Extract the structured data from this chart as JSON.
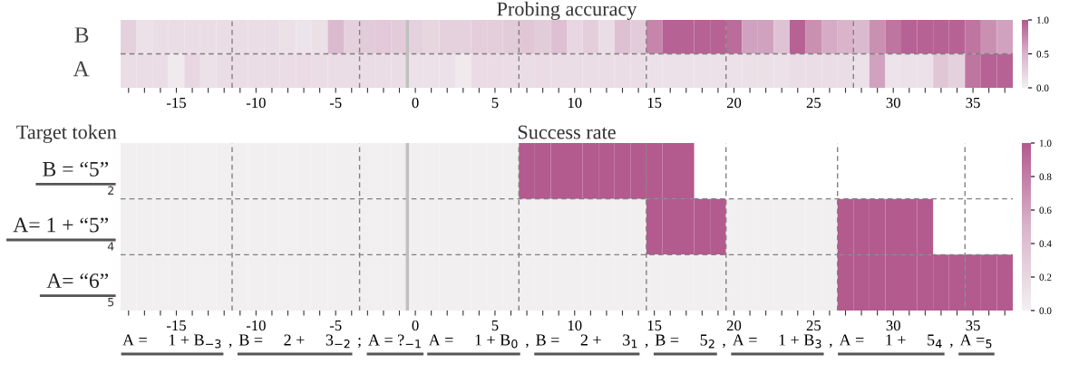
{
  "chart_data": [
    {
      "type": "heatmap",
      "title": "Probing accuracy",
      "x": [
        -18,
        -17,
        -16,
        -15,
        -14,
        -13,
        -12,
        -11,
        -10,
        -9,
        -8,
        -7,
        -6,
        -5,
        -4,
        -3,
        -2,
        -1,
        0,
        1,
        2,
        3,
        4,
        5,
        6,
        7,
        8,
        9,
        10,
        11,
        12,
        13,
        14,
        15,
        16,
        17,
        18,
        19,
        20,
        21,
        22,
        23,
        24,
        25,
        26,
        27,
        28,
        29,
        30,
        31,
        32,
        33,
        34,
        35,
        36,
        37
      ],
      "xlim": [
        -18.5,
        37.5
      ],
      "xticks": [
        {
          "value": -18,
          "label": null
        },
        {
          "value": -17,
          "label": null
        },
        {
          "value": -16,
          "label": null
        },
        -15,
        {
          "value": -14,
          "label": null
        },
        {
          "value": -13,
          "label": null
        },
        {
          "value": -12,
          "label": null
        },
        {
          "value": -11,
          "label": null
        },
        -10,
        {
          "value": -9,
          "label": null
        },
        {
          "value": -8,
          "label": null
        },
        {
          "value": -7,
          "label": null
        },
        {
          "value": -6,
          "label": null
        },
        -5,
        {
          "value": -4,
          "label": null
        },
        {
          "value": -3,
          "label": null
        },
        {
          "value": -2,
          "label": null
        },
        {
          "value": -1,
          "label": null
        },
        0,
        {
          "value": 1,
          "label": null
        },
        {
          "value": 2,
          "label": null
        },
        {
          "value": 3,
          "label": null
        },
        {
          "value": 4,
          "label": null
        },
        5,
        {
          "value": 6,
          "label": null
        },
        {
          "value": 7,
          "label": null
        },
        {
          "value": 8,
          "label": null
        },
        {
          "value": 9,
          "label": null
        },
        10,
        {
          "value": 11,
          "label": null
        },
        {
          "value": 12,
          "label": null
        },
        {
          "value": 13,
          "label": null
        },
        {
          "value": 14,
          "label": null
        },
        15,
        {
          "value": 16,
          "label": null
        },
        {
          "value": 17,
          "label": null
        },
        {
          "value": 18,
          "label": null
        },
        {
          "value": 19,
          "label": null
        },
        20,
        {
          "value": 21,
          "label": null
        },
        {
          "value": 22,
          "label": null
        },
        {
          "value": 23,
          "label": null
        },
        {
          "value": 24,
          "label": null
        },
        25,
        {
          "value": 26,
          "label": null
        },
        {
          "value": 27,
          "label": null
        },
        {
          "value": 28,
          "label": null
        },
        {
          "value": 29,
          "label": null
        },
        30,
        {
          "value": 31,
          "label": null
        },
        {
          "value": 32,
          "label": null
        },
        {
          "value": 33,
          "label": null
        },
        {
          "value": 34,
          "label": null
        },
        35,
        {
          "value": 36,
          "label": null
        },
        {
          "value": 37,
          "label": null
        }
      ],
      "y_categories": [
        "B",
        "A"
      ],
      "cells": [
        [
          0.25,
          0.12,
          0.15,
          0.15,
          0.15,
          0.15,
          0.15,
          0.15,
          0.15,
          0.15,
          0.13,
          0.1,
          0.13,
          0.45,
          0.25,
          0.3,
          0.33,
          0.3,
          0.25,
          0.22,
          0.25,
          0.25,
          0.28,
          0.28,
          0.3,
          0.35,
          0.3,
          0.4,
          0.2,
          0.28,
          0.15,
          0.4,
          0.3,
          0.75,
          0.95,
          0.95,
          0.95,
          0.95,
          0.9,
          0.6,
          0.6,
          0.38,
          0.95,
          0.7,
          0.55,
          0.5,
          0.45,
          0.7,
          0.85,
          0.95,
          0.95,
          0.95,
          0.95,
          0.85,
          0.7,
          0.6
        ],
        [
          0.15,
          0.15,
          0.15,
          0.05,
          0.2,
          0.12,
          0.15,
          0.15,
          0.15,
          0.15,
          0.15,
          0.17,
          0.15,
          0.15,
          0.15,
          0.15,
          0.15,
          0.15,
          0.12,
          0.12,
          0.12,
          0.05,
          0.17,
          0.17,
          0.15,
          0.15,
          0.17,
          0.15,
          0.15,
          0.15,
          0.15,
          0.15,
          0.15,
          0.12,
          0.12,
          0.12,
          0.12,
          0.12,
          0.12,
          0.13,
          0.13,
          0.12,
          0.15,
          0.15,
          0.15,
          0.15,
          0.12,
          0.6,
          0.1,
          0.12,
          0.12,
          0.35,
          0.25,
          0.85,
          0.95,
          0.95
        ]
      ],
      "clim": [
        0,
        1
      ],
      "cticks": [
        {
          "value": 0,
          "label": "0.0"
        },
        {
          "value": 0.5,
          "label": "0.5"
        },
        {
          "value": 1,
          "label": "1.0"
        }
      ],
      "ref_lines": [
        {
          "axis": "x",
          "value": -11.5,
          "color": "#808080",
          "line_style": "dashed"
        },
        {
          "axis": "x",
          "value": -3.5,
          "color": "#808080",
          "line_style": "dashed"
        },
        {
          "axis": "x",
          "value": 6.5,
          "color": "#808080",
          "line_style": "dashed"
        },
        {
          "axis": "x",
          "value": 14.5,
          "color": "#808080",
          "line_style": "dashed"
        },
        {
          "axis": "x",
          "value": 19.5,
          "color": "#808080",
          "line_style": "dashed"
        },
        {
          "axis": "x",
          "value": 27.5,
          "color": "#808080",
          "line_style": "dashed"
        },
        {
          "axis": "x",
          "value": -0.5,
          "color": "#c0c0c0",
          "line_style": "solid"
        }
      ]
    },
    {
      "type": "heatmap",
      "title": "Success rate",
      "ylabel": "Target token",
      "x": [
        -18,
        -17,
        -16,
        -15,
        -14,
        -13,
        -12,
        -11,
        -10,
        -9,
        -8,
        -7,
        -6,
        -5,
        -4,
        -3,
        -2,
        -1,
        0,
        1,
        2,
        3,
        4,
        5,
        6,
        7,
        8,
        9,
        10,
        11,
        12,
        13,
        14,
        15,
        16,
        17,
        18,
        19,
        20,
        21,
        22,
        23,
        24,
        25,
        26,
        27,
        28,
        29,
        30,
        31,
        32,
        33,
        34,
        35,
        36,
        37
      ],
      "xlim": [
        -18.5,
        37.5
      ],
      "xticks": [
        {
          "value": -18,
          "label": null
        },
        {
          "value": -17,
          "label": null
        },
        {
          "value": -16,
          "label": null
        },
        -15,
        {
          "value": -14,
          "label": null
        },
        {
          "value": -13,
          "label": null
        },
        {
          "value": -12,
          "label": null
        },
        {
          "value": -11,
          "label": null
        },
        -10,
        {
          "value": -9,
          "label": null
        },
        {
          "value": -8,
          "label": null
        },
        {
          "value": -7,
          "label": null
        },
        {
          "value": -6,
          "label": null
        },
        -5,
        {
          "value": -4,
          "label": null
        },
        {
          "value": -3,
          "label": null
        },
        {
          "value": -2,
          "label": null
        },
        {
          "value": -1,
          "label": null
        },
        0,
        {
          "value": 1,
          "label": null
        },
        {
          "value": 2,
          "label": null
        },
        {
          "value": 3,
          "label": null
        },
        {
          "value": 4,
          "label": null
        },
        5,
        {
          "value": 6,
          "label": null
        },
        {
          "value": 7,
          "label": null
        },
        {
          "value": 8,
          "label": null
        },
        {
          "value": 9,
          "label": null
        },
        10,
        {
          "value": 11,
          "label": null
        },
        {
          "value": 12,
          "label": null
        },
        {
          "value": 13,
          "label": null
        },
        {
          "value": 14,
          "label": null
        },
        15,
        {
          "value": 16,
          "label": null
        },
        {
          "value": 17,
          "label": null
        },
        {
          "value": 18,
          "label": null
        },
        {
          "value": 19,
          "label": null
        },
        20,
        {
          "value": 21,
          "label": null
        },
        {
          "value": 22,
          "label": null
        },
        {
          "value": 23,
          "label": null
        },
        {
          "value": 24,
          "label": null
        },
        25,
        {
          "value": 26,
          "label": null
        },
        {
          "value": 27,
          "label": null
        },
        {
          "value": 28,
          "label": null
        },
        {
          "value": 29,
          "label": null
        },
        30,
        {
          "value": 31,
          "label": null
        },
        {
          "value": 32,
          "label": null
        },
        {
          "value": 33,
          "label": null
        },
        {
          "value": 34,
          "label": null
        },
        35,
        {
          "value": 36,
          "label": null
        },
        {
          "value": 37,
          "label": null
        }
      ],
      "y_categories": [
        "B = “5”",
        "A= 1 + “5”",
        "A= “6”"
      ],
      "cells": [
        [
          0,
          0,
          0,
          0,
          0,
          0,
          0,
          0,
          0,
          0,
          0,
          0,
          0,
          0,
          0,
          0,
          0,
          0,
          0,
          0,
          0,
          0,
          0,
          0,
          0,
          1,
          1,
          1,
          1,
          1,
          1,
          1,
          1,
          1,
          1,
          1,
          null,
          null,
          null,
          null,
          null,
          null,
          null,
          null,
          null,
          null,
          null,
          null,
          null,
          null,
          null,
          null,
          null,
          null,
          null,
          null
        ],
        [
          0,
          0,
          0,
          0,
          0,
          0,
          0,
          0,
          0,
          0,
          0,
          0,
          0,
          0,
          0,
          0,
          0,
          0,
          0,
          0,
          0,
          0,
          0,
          0,
          0,
          0,
          0,
          0,
          0,
          0,
          0,
          0,
          0,
          1,
          1,
          1,
          1,
          1,
          0,
          0,
          0,
          0,
          0,
          0,
          0,
          1,
          1,
          1,
          1,
          1,
          1,
          null,
          null,
          null,
          null,
          null
        ],
        [
          0,
          0,
          0,
          0,
          0,
          0,
          0,
          0,
          0,
          0,
          0,
          0,
          0,
          0,
          0,
          0,
          0,
          0,
          0,
          0,
          0,
          0,
          0,
          0,
          0,
          0,
          0,
          0,
          0,
          0,
          0,
          0,
          0,
          0,
          0,
          0,
          0,
          0,
          0,
          0,
          0,
          0,
          0,
          0,
          0,
          1,
          1,
          1,
          1,
          1,
          1,
          1,
          1,
          1,
          1,
          1
        ]
      ],
      "clim": [
        0,
        1
      ],
      "cticks": [
        {
          "value": 0,
          "label": "0.0"
        },
        {
          "value": 0.2,
          "label": "0.2"
        },
        {
          "value": 0.4,
          "label": "0.4"
        },
        {
          "value": 0.6,
          "label": "0.6"
        },
        {
          "value": 0.8,
          "label": "0.8"
        },
        {
          "value": 1,
          "label": "1.0"
        }
      ],
      "ref_lines": [
        {
          "axis": "x",
          "value": -11.5,
          "color": "#808080",
          "line_style": "dashed"
        },
        {
          "axis": "x",
          "value": -3.5,
          "color": "#808080",
          "line_style": "dashed"
        },
        {
          "axis": "x",
          "value": 6.5,
          "color": "#808080",
          "line_style": "dashed"
        },
        {
          "axis": "x",
          "value": 14.5,
          "color": "#808080",
          "line_style": "dashed"
        },
        {
          "axis": "x",
          "value": 19.5,
          "color": "#808080",
          "line_style": "dashed"
        },
        {
          "axis": "x",
          "value": 26.5,
          "color": "#808080",
          "line_style": "dashed"
        },
        {
          "axis": "x",
          "value": 34.5,
          "color": "#808080",
          "line_style": "dashed"
        },
        {
          "axis": "x",
          "value": -0.5,
          "color": "#c0c0c0",
          "line_style": "solid"
        }
      ],
      "y2_categories": [
        "2",
        "4",
        "5"
      ],
      "annotations": [
        "A =     1 + B$_{−3}$",
        ",",
        "B =     2 +     3$_{−2}$",
        ";",
        "A = ?$_{−1}$",
        "A =     1 + B$_{0}$",
        ",",
        "B =     2 +     3$_{1}$",
        ",",
        "B =     5$_{2}$",
        ",",
        "A =     1 + B$_{3}$",
        ",",
        "A =     1 +     5$_{4}$",
        ",",
        "A =$_{5}$"
      ]
    }
  ]
}
